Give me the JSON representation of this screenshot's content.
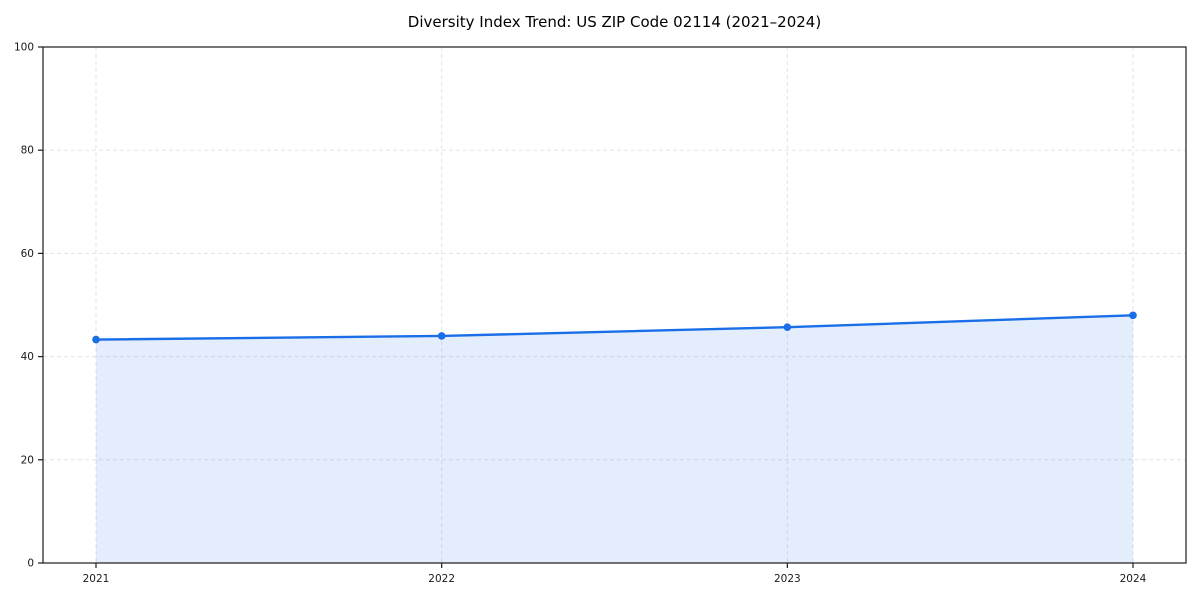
{
  "chart_data": {
    "type": "area",
    "title": "Diversity Index Trend: US ZIP Code 02114 (2021–2024)",
    "x": [
      "2021",
      "2022",
      "2023",
      "2024"
    ],
    "series": [
      {
        "name": "Diversity Index",
        "values": [
          43.3,
          44.0,
          45.7,
          48.0
        ]
      }
    ],
    "xlabel": "",
    "ylabel": "",
    "ylim": [
      0,
      100
    ],
    "yticks": [
      0,
      20,
      40,
      60,
      80,
      100
    ],
    "grid": true,
    "grid_style": "dashed",
    "legend_position": "none",
    "colors": {
      "line": "#1a6ee8",
      "marker": "#1a6ee8",
      "fill": "rgba(26,110,232,0.12)",
      "grid": "#e3e3e3",
      "axis": "#1a1a1a",
      "tick_text": "#1a1a1a",
      "background": "#ffffff"
    }
  }
}
